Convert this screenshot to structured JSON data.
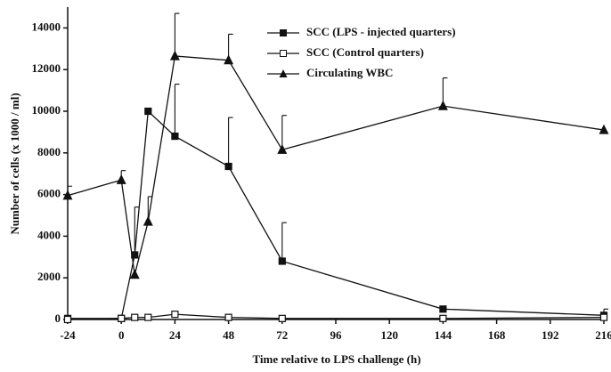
{
  "chart_data": {
    "type": "line",
    "xlabel": "Time relative to LPS challenge (h)",
    "ylabel": "Number of cells (x 1000 / ml)",
    "x": [
      -24,
      0,
      6,
      12,
      24,
      48,
      72,
      144,
      216
    ],
    "xlim": [
      -24,
      216
    ],
    "xticks": [
      -24,
      0,
      24,
      48,
      72,
      96,
      120,
      144,
      168,
      192,
      216
    ],
    "ylim": [
      0,
      15000
    ],
    "yticks": [
      0,
      2000,
      4000,
      6000,
      8000,
      10000,
      12000,
      14000
    ],
    "legend": "upper center",
    "series": [
      {
        "name": "SCC (LPS - injected quarters)",
        "color": "#111111",
        "marker": "square-filled",
        "values": [
          50,
          50,
          3100,
          10000,
          8800,
          7350,
          2800,
          500,
          200
        ],
        "errors": [
          null,
          null,
          2300,
          null,
          2500,
          2350,
          1850,
          null,
          300
        ]
      },
      {
        "name": "SCC (Control quarters)",
        "color": "#111111",
        "marker": "square-open",
        "values": [
          0,
          50,
          100,
          100,
          250,
          100,
          50,
          50,
          100
        ],
        "errors": [
          null,
          null,
          null,
          null,
          null,
          null,
          null,
          null,
          null
        ]
      },
      {
        "name": "Circulating WBC",
        "color": "#111111",
        "marker": "triangle",
        "values": [
          5950,
          6700,
          2150,
          4700,
          12650,
          12450,
          8150,
          10250,
          9100
        ],
        "errors": [
          450,
          450,
          null,
          1200,
          2050,
          1250,
          1650,
          1350,
          null
        ]
      }
    ]
  }
}
